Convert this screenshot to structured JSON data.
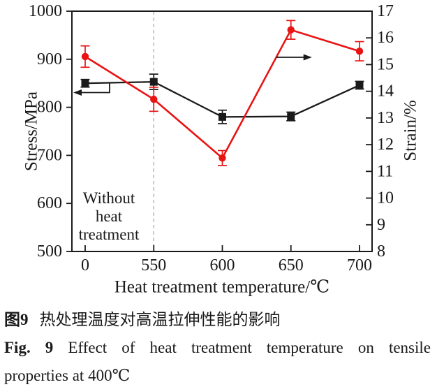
{
  "chart_data": {
    "type": "line",
    "x_categories": [
      "0",
      "550",
      "600",
      "650",
      "700"
    ],
    "xlabel": "Heat treatment temperature/℃",
    "grid": false,
    "legend": "none",
    "axes": {
      "left": {
        "label": "Stress/MPa",
        "min": 500,
        "max": 1000,
        "ticks": [
          1000,
          900,
          800,
          700,
          600,
          500
        ]
      },
      "right": {
        "label": "Strain/%",
        "min": 8,
        "max": 17,
        "ticks": [
          17,
          16,
          15,
          14,
          13,
          12,
          11,
          10,
          9,
          8
        ]
      }
    },
    "series": [
      {
        "name": "Stress",
        "axis": "left",
        "color": "#1a1a1a",
        "marker": "square",
        "values": [
          850,
          853,
          780,
          781,
          846
        ],
        "errors": [
          8,
          16,
          14,
          9,
          8
        ]
      },
      {
        "name": "Strain",
        "axis": "right",
        "color": "#e81414",
        "marker": "circle",
        "values": [
          15.3,
          13.7,
          11.5,
          16.3,
          15.5
        ],
        "errors": [
          0.4,
          0.45,
          0.28,
          0.35,
          0.36
        ]
      }
    ],
    "annotations": {
      "region_label_lines": [
        "Without",
        "heat",
        "treatment"
      ],
      "dashed_line_at_category": "550",
      "left_axis_arrow_series": "Stress",
      "right_axis_arrow_series": "Strain"
    },
    "colors": {
      "dashed_line": "#b8b8b8",
      "axis": "#1a1a1a"
    }
  },
  "figure": {
    "caption_cn_label": "图9",
    "caption_cn_text": "热处理温度对高温拉伸性能的影响",
    "caption_en_label": "Fig. 9",
    "caption_en_line1": "Effect of heat treatment temperature on tensile",
    "caption_en_line2": "properties at 400℃"
  }
}
